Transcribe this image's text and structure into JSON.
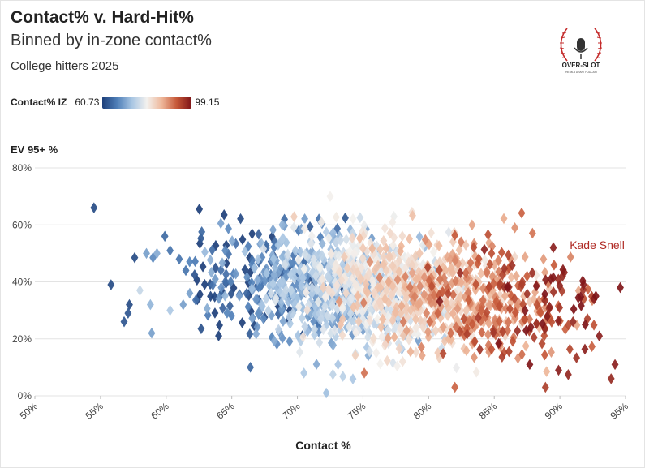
{
  "header": {
    "title": "Contact% v. Hard-Hit%",
    "subtitle": "Binned by in-zone contact%",
    "description": "College hitters 2025"
  },
  "legend": {
    "title": "Contact% IZ",
    "min": "60.73",
    "max": "99.15"
  },
  "logo": {
    "text": "OVER-SLOT",
    "subtext": "THE MLB DRAFT PODCAST"
  },
  "colors": {
    "scale": [
      "#1d3f7a",
      "#4f7fb8",
      "#a9c6e3",
      "#f3f1ee",
      "#eeb79a",
      "#c65838",
      "#7e1418"
    ]
  },
  "chart_data": {
    "type": "scatter",
    "marker": "diamond",
    "xlabel": "Contact %",
    "ylabel": "EV 95+ %",
    "xlim": [
      50,
      95
    ],
    "ylim": [
      0,
      80
    ],
    "x_ticks": [
      "50%",
      "55%",
      "60%",
      "65%",
      "70%",
      "75%",
      "80%",
      "85%",
      "90%",
      "95%"
    ],
    "y_ticks": [
      "0%",
      "20%",
      "40%",
      "60%",
      "80%"
    ],
    "color_by": "Contact% IZ",
    "color_range": [
      60.73,
      99.15
    ],
    "annotation": {
      "label": "Kade Snell",
      "x": 90.5,
      "y": 53
    },
    "points": [
      [
        54.5,
        66,
        62
      ],
      [
        55.8,
        39,
        62
      ],
      [
        56.8,
        26,
        63
      ],
      [
        57.2,
        32,
        62
      ],
      [
        57.6,
        48.5,
        62
      ],
      [
        57.1,
        29,
        63
      ],
      [
        58.0,
        37,
        76
      ],
      [
        58.5,
        50,
        70
      ],
      [
        58.8,
        32,
        72
      ],
      [
        59.0,
        48.5,
        68
      ],
      [
        58.9,
        22,
        70
      ],
      [
        59.3,
        50,
        71
      ],
      [
        59.9,
        56,
        65
      ],
      [
        60.3,
        30,
        74
      ],
      [
        60.3,
        51,
        66
      ],
      [
        61.0,
        48,
        66
      ],
      [
        61.3,
        32,
        70
      ],
      [
        61.5,
        44,
        66
      ],
      [
        61.8,
        36,
        70
      ],
      [
        75.0,
        37,
        80
      ],
      [
        87.7,
        11,
        99
      ],
      [
        89.5,
        52,
        98
      ],
      [
        90.2,
        42,
        97
      ],
      [
        91.8,
        39,
        98
      ],
      [
        93.9,
        6,
        97
      ],
      [
        94.2,
        11,
        98
      ],
      [
        94.6,
        38,
        99
      ],
      [
        92.6,
        34,
        98
      ],
      [
        93.0,
        21,
        98
      ],
      [
        91.0,
        26,
        97
      ],
      [
        89.9,
        9,
        98
      ],
      [
        88.9,
        3,
        95
      ],
      [
        75.1,
        8,
        91
      ],
      [
        82.0,
        3,
        92
      ],
      [
        72.2,
        1,
        73
      ],
      [
        70.5,
        8,
        74
      ],
      [
        64.5,
        51,
        68
      ],
      [
        64.2,
        38,
        69
      ],
      [
        72.5,
        70,
        80
      ],
      [
        71.6,
        33,
        79
      ],
      [
        68.0,
        36,
        77
      ]
    ]
  }
}
